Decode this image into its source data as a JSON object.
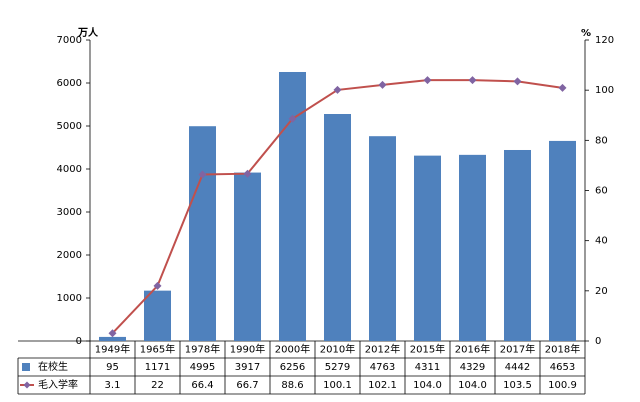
{
  "chart_data": {
    "type": "bar-line",
    "y_label": "万人",
    "y2_label": "%",
    "categories": [
      "1949年",
      "1965年",
      "1978年",
      "1990年",
      "2000年",
      "2010年",
      "2012年",
      "2015年",
      "2016年",
      "2017年",
      "2018年"
    ],
    "series": [
      {
        "name": "在校生",
        "type": "bar",
        "color": "#4f81bd",
        "values": [
          95,
          1171,
          4995,
          3917,
          6256,
          5279,
          4763,
          4311,
          4329,
          4442,
          4653
        ]
      },
      {
        "name": "毛入学率",
        "type": "line",
        "axis": "y2",
        "color": "#c0504d",
        "marker_color": "#8064a2",
        "values": [
          3.1,
          22,
          66.4,
          66.7,
          88.6,
          100.1,
          102.1,
          104.0,
          104.0,
          103.5,
          100.9
        ],
        "value_labels": [
          "3.1",
          "22",
          "66.4",
          "66.7",
          "88.6",
          "100.1",
          "102.1",
          "104.0",
          "104.0",
          "103.5",
          "100.9"
        ]
      }
    ],
    "ylim": [
      0,
      7000
    ],
    "yticks": [
      0,
      1000,
      2000,
      3000,
      4000,
      5000,
      6000,
      7000
    ],
    "y2lim": [
      0,
      120
    ],
    "y2ticks": [
      0,
      20,
      40,
      60,
      80,
      100,
      120
    ],
    "grid": false
  }
}
